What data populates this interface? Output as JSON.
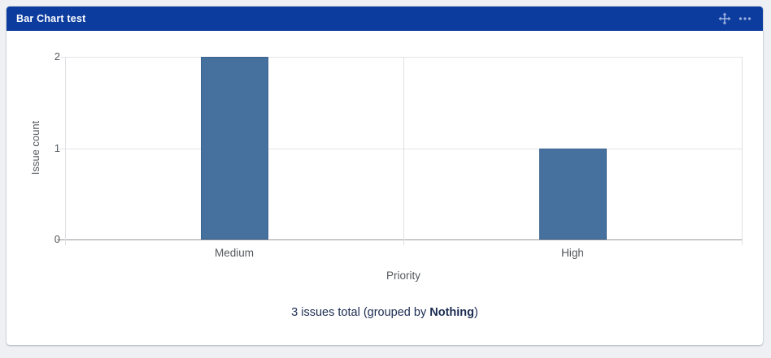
{
  "window": {
    "title": "Bar Chart test"
  },
  "header_icons": {
    "move": "move-icon",
    "more": "more-options-icon"
  },
  "chart_data": {
    "type": "bar",
    "categories": [
      "Medium",
      "High"
    ],
    "values": [
      2,
      1
    ],
    "title": "Bar Chart test",
    "xlabel": "Priority",
    "ylabel": "Issue count",
    "ylim": [
      0,
      2
    ],
    "yticks": [
      0,
      1,
      2
    ],
    "grid": true,
    "legend": false,
    "bar_color": "#46719e",
    "bar_border_color": "#3b6491"
  },
  "summary": {
    "prefix": "3 issues total (grouped by ",
    "group": "Nothing",
    "suffix": ")"
  },
  "colors": {
    "header_bg": "#0c3c9e",
    "header_text": "#ffffff",
    "header_icon": "#9db1e0",
    "page_bg": "#eef0f4",
    "card_bg": "#ffffff",
    "grid_line": "#e4e5e7",
    "axis_line": "#97999d",
    "tick_text": "#55585d",
    "summary_text": "#1b2c51"
  }
}
